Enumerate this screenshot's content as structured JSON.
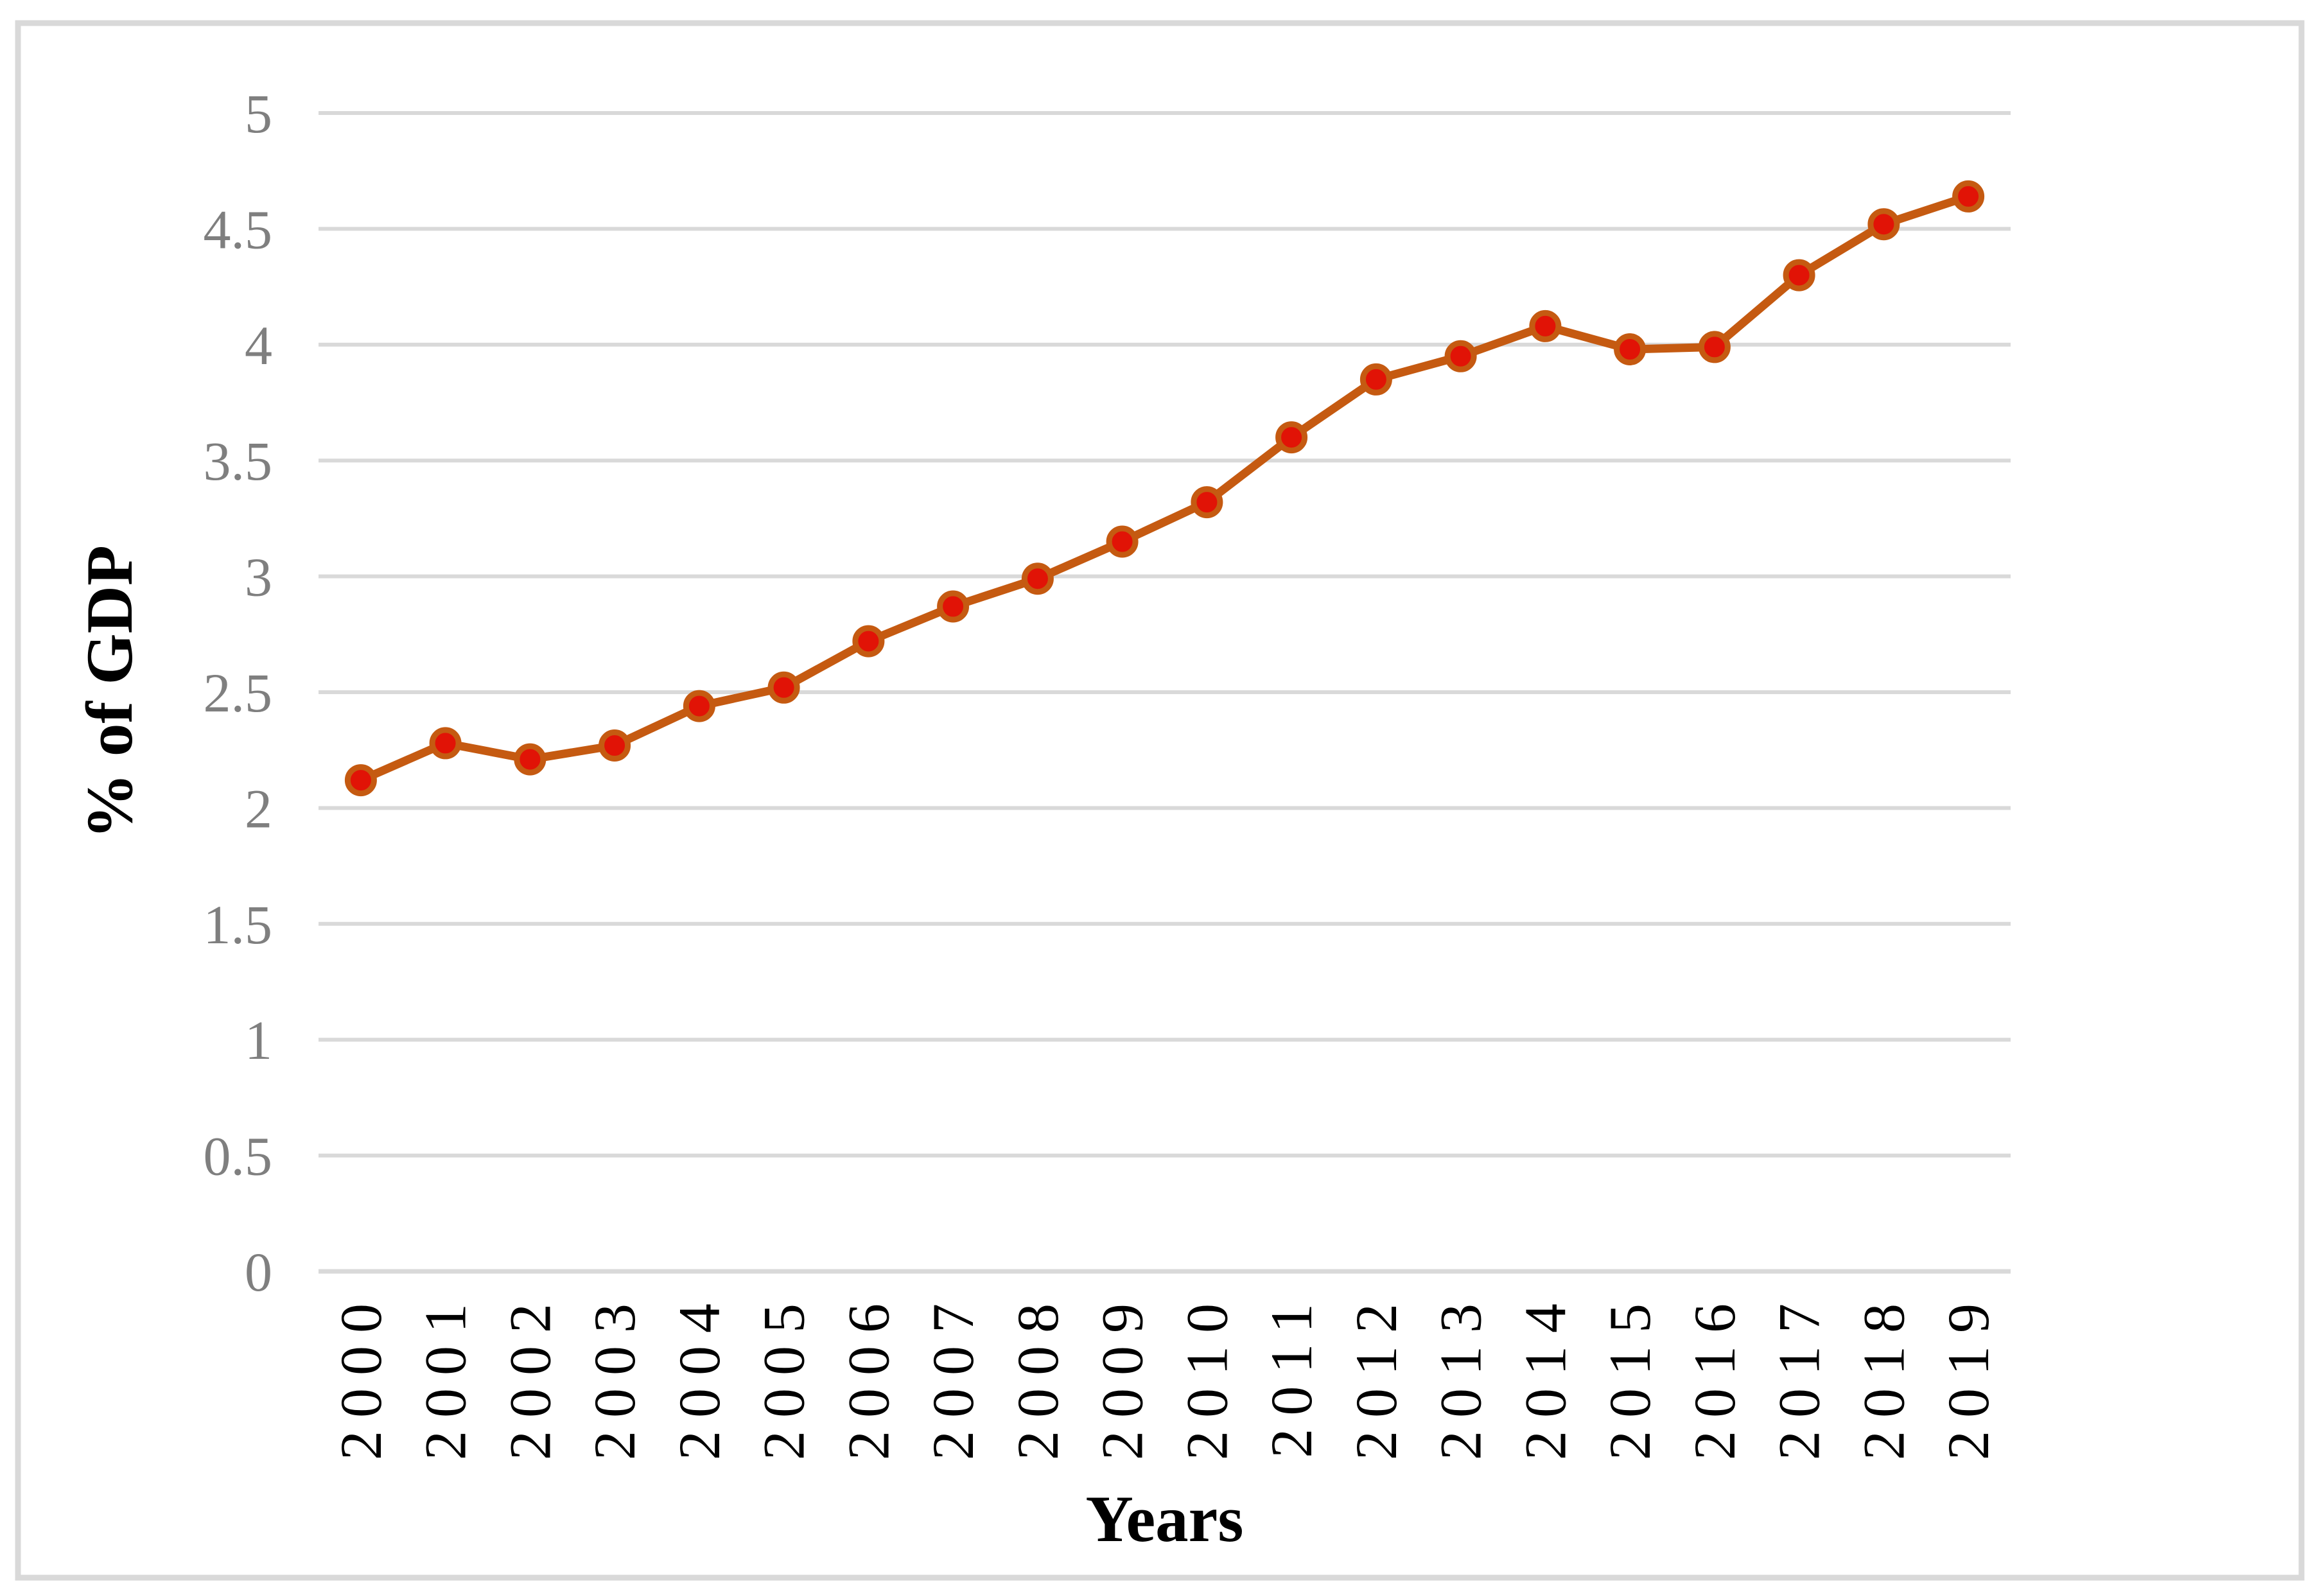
{
  "figure": {
    "background": "#ffffff",
    "border_color": "#d9d9d9"
  },
  "chart_data": {
    "type": "line",
    "title": "",
    "xlabel": "Years",
    "ylabel": "% of GDP",
    "categories": [
      "2000",
      "2001",
      "2002",
      "2003",
      "2004",
      "2005",
      "2006",
      "2007",
      "2008",
      "2009",
      "2010",
      "2011",
      "2012",
      "2013",
      "2014",
      "2015",
      "2016",
      "2017",
      "2018",
      "2019"
    ],
    "series": [
      {
        "name": "% of GDP",
        "values": [
          2.12,
          2.28,
          2.21,
          2.27,
          2.44,
          2.52,
          2.72,
          2.87,
          2.99,
          3.15,
          3.32,
          3.6,
          3.85,
          3.95,
          4.08,
          3.98,
          3.99,
          4.3,
          4.52,
          4.64
        ]
      }
    ],
    "ylim": [
      0,
      5
    ],
    "ytick_interval": 0.5,
    "yticks": [
      "0",
      "0.5",
      "1",
      "1.5",
      "2",
      "2.5",
      "3",
      "3.5",
      "4",
      "4.5",
      "5"
    ],
    "grid": "horizontal",
    "legend": "none",
    "colors": {
      "line": "#c55a11",
      "marker_fill": "#e11306",
      "marker_ring": "#c55a11",
      "gridline": "#d9d9d9",
      "axis_line": "#d9d9d9",
      "ytick_text": "#7f7f7f",
      "xtick_text": "#000000",
      "axis_title_text": "#000000"
    }
  }
}
